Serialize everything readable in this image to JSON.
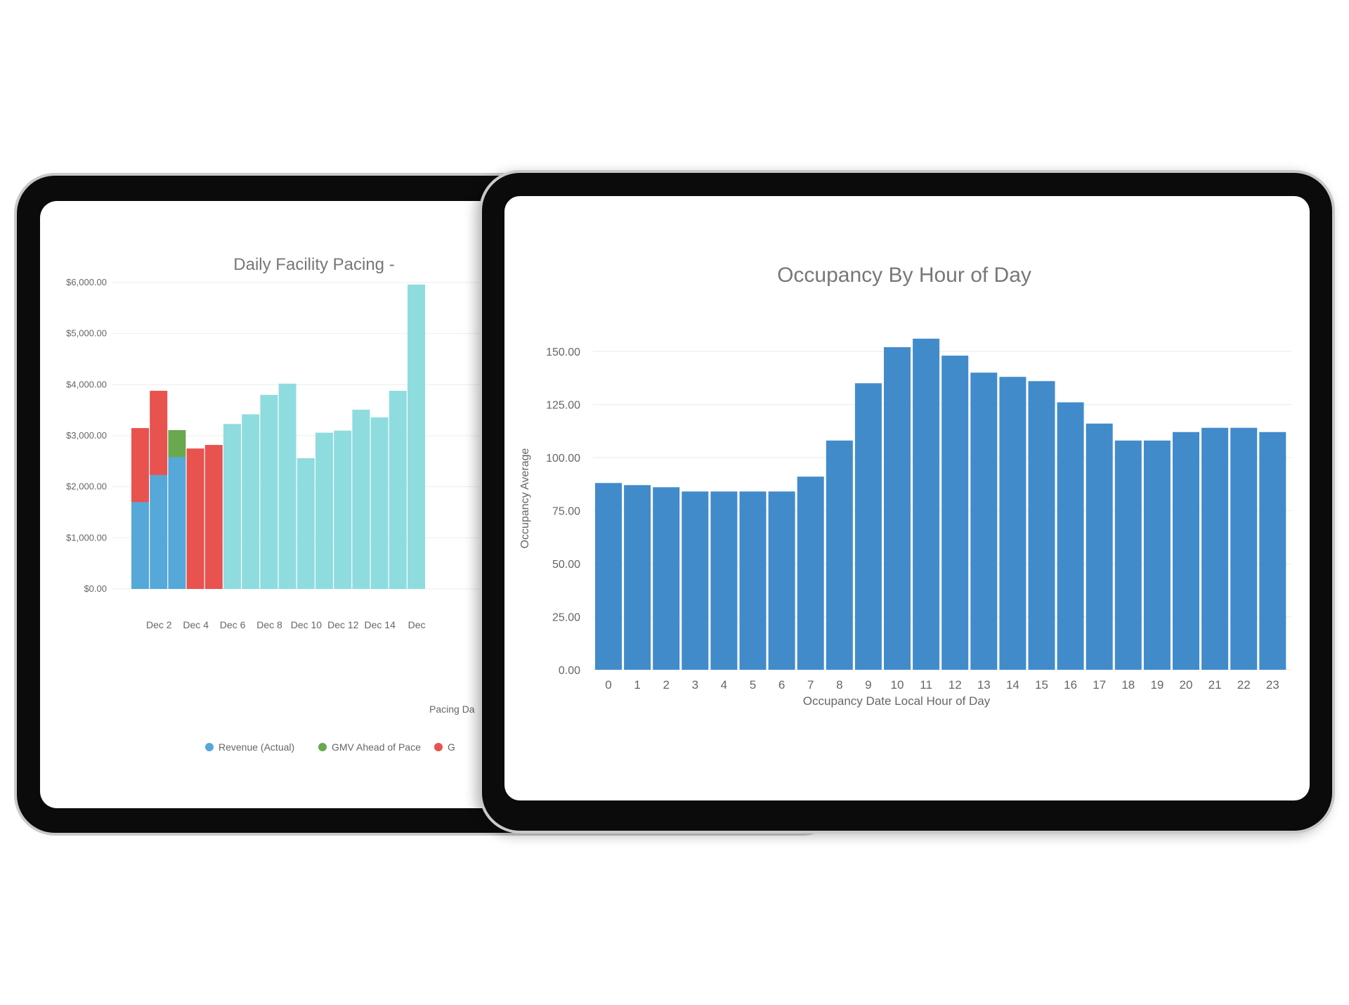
{
  "chart_data": [
    {
      "type": "bar",
      "stacked": true,
      "title": "Daily Facility Pacing -",
      "xlabel": "Pacing Da",
      "ylabel": "",
      "ylim": [
        0,
        6000
      ],
      "yticks": [
        "$0.00",
        "$1,000.00",
        "$2,000.00",
        "$3,000.00",
        "$4,000.00",
        "$5,000.00",
        "$6,000.00"
      ],
      "xtick_labels": [
        "Dec 2",
        "Dec 4",
        "Dec 6",
        "Dec 8",
        "Dec 10",
        "Dec 12",
        "Dec 14",
        "Dec"
      ],
      "grid": true,
      "legend": [
        "Revenue (Actual)",
        "GMV Ahead of Pace",
        "G"
      ],
      "series": [
        {
          "name": "Revenue (Actual)",
          "color": "#55a8d8",
          "values": [
            1700,
            2230,
            2580,
            0,
            0,
            0,
            0,
            0,
            0,
            0,
            0,
            0,
            0,
            0,
            0,
            0
          ]
        },
        {
          "name": "GMV Ahead of Pace",
          "color": "#69a84f",
          "values": [
            0,
            0,
            530,
            0,
            0,
            0,
            0,
            0,
            0,
            0,
            0,
            0,
            0,
            0,
            0,
            0
          ]
        },
        {
          "name": "G",
          "color": "#e8524f",
          "values": [
            1450,
            1650,
            0,
            2750,
            2820,
            0,
            0,
            0,
            0,
            0,
            0,
            0,
            0,
            0,
            0,
            0
          ]
        },
        {
          "name": "",
          "color": "#8fdcdf",
          "values": [
            0,
            0,
            0,
            0,
            0,
            3230,
            3420,
            3800,
            4020,
            2560,
            3060,
            3100,
            3510,
            3360,
            3880,
            5960
          ]
        }
      ]
    },
    {
      "type": "bar",
      "title": "Occupancy By Hour of Day",
      "xlabel": "Occupancy Date Local Hour of Day",
      "ylabel": "Occupancy Average",
      "ylim": [
        0,
        160
      ],
      "yticks": [
        "0.00",
        "25.00",
        "50.00",
        "75.00",
        "100.00",
        "125.00",
        "150.00"
      ],
      "categories": [
        "0",
        "1",
        "2",
        "3",
        "4",
        "5",
        "6",
        "7",
        "8",
        "9",
        "10",
        "11",
        "12",
        "13",
        "14",
        "15",
        "16",
        "17",
        "18",
        "19",
        "20",
        "21",
        "22",
        "23"
      ],
      "values": [
        88,
        87,
        86,
        84,
        84,
        84,
        84,
        91,
        108,
        135,
        152,
        156,
        148,
        140,
        138,
        136,
        126,
        116,
        108,
        108,
        112,
        114,
        114,
        112
      ],
      "color": "#428bcb",
      "grid": true
    }
  ]
}
